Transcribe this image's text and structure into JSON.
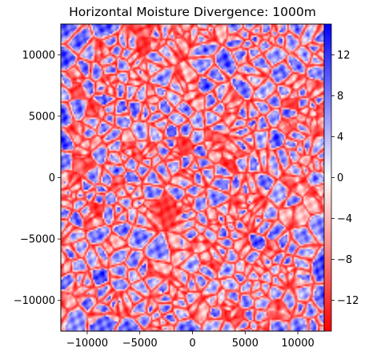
{
  "chart_data": {
    "type": "heatmap",
    "title": "Horizontal Moisture Divergence: 1000m",
    "xlabel": "",
    "ylabel": "",
    "xlim": [
      -12500,
      12500
    ],
    "ylim": [
      -12500,
      12500
    ],
    "x_ticks": [
      -10000,
      -5000,
      0,
      5000,
      10000
    ],
    "x_tick_labels": [
      "−10000",
      "−5000",
      "0",
      "5000",
      "10000"
    ],
    "y_ticks": [
      -10000,
      -5000,
      0,
      5000,
      10000
    ],
    "y_tick_labels": [
      "−10000",
      "−5000",
      "0",
      "5000",
      "10000"
    ],
    "colorbar": {
      "colormap": "bwr_r",
      "range": [
        -15,
        15
      ],
      "ticks": [
        -12,
        -8,
        -4,
        0,
        4,
        8,
        12
      ],
      "tick_labels": [
        "−12",
        "−8",
        "−4",
        "0",
        "4",
        "8",
        "12"
      ],
      "high_color": "#0000ff",
      "mid_color": "#ffffff",
      "low_color": "#ff0000"
    },
    "grid": false,
    "legend": "none",
    "field_description_values": {
      "min": -15,
      "max": 15,
      "pattern": "cellular"
    }
  }
}
